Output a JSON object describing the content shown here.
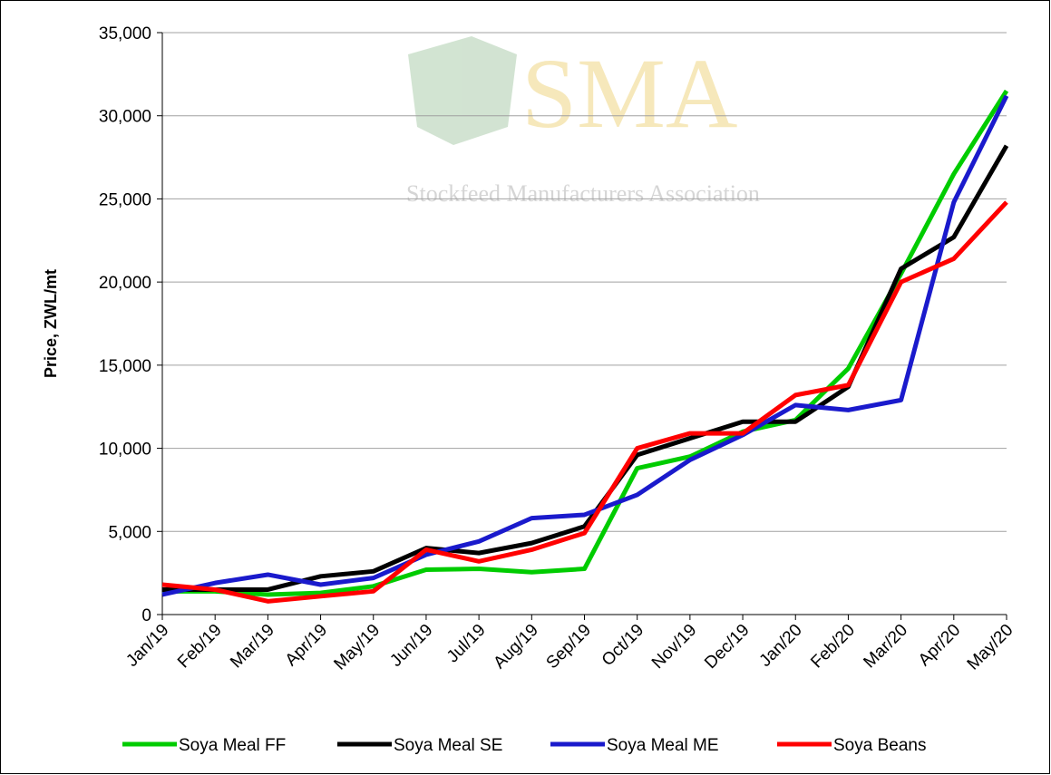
{
  "chart_data": {
    "type": "line",
    "y_label": "Price, ZWL/mt",
    "watermark_title": "SMA",
    "watermark_subtitle": "Stockfeed Manufacturers Association",
    "categories": [
      "Jan/19",
      "Feb/19",
      "Mar/19",
      "Apr/19",
      "May/19",
      "Jun/19",
      "Jul/19",
      "Aug/19",
      "Sep/19",
      "Oct/19",
      "Nov/19",
      "Dec/19",
      "Jan/20",
      "Feb/20",
      "Mar/20",
      "Apr/20",
      "May/20"
    ],
    "series": [
      {
        "name": "Soya Meal FF",
        "color": "#00cc00",
        "values": [
          1400,
          1400,
          1200,
          1300,
          1700,
          2700,
          2750,
          2550,
          2750,
          8800,
          9500,
          11000,
          11700,
          14800,
          20500,
          26500,
          31500
        ]
      },
      {
        "name": "Soya Meal SE",
        "color": "#000000",
        "values": [
          1500,
          1500,
          1500,
          2300,
          2600,
          4000,
          3700,
          4300,
          5300,
          9600,
          10600,
          11600,
          11600,
          13700,
          20800,
          22700,
          28200
        ]
      },
      {
        "name": "Soya Meal ME",
        "color": "#1a1acc",
        "values": [
          1200,
          1900,
          2400,
          1800,
          2200,
          3600,
          4400,
          5800,
          6000,
          7200,
          9300,
          10800,
          12600,
          12300,
          12900,
          24800,
          31200
        ]
      },
      {
        "name": "Soya Beans",
        "color": "#ff0000",
        "values": [
          1800,
          1500,
          800,
          1100,
          1400,
          3900,
          3200,
          3900,
          4900,
          10000,
          10900,
          10900,
          13200,
          13800,
          20000,
          21400,
          24800
        ]
      }
    ],
    "ylim": [
      0,
      35000
    ],
    "yticks": [
      0,
      {
        "value": 5000,
        "label": "5,000"
      },
      {
        "value": 10000,
        "label": "10,000"
      },
      {
        "value": 15000,
        "label": "15,000"
      },
      {
        "value": 20000,
        "label": "20,000"
      },
      {
        "value": 25000,
        "label": "25,000"
      },
      {
        "value": 30000,
        "label": "30,000"
      },
      {
        "value": 35000,
        "label": "35,000"
      }
    ],
    "grid": true,
    "legend": "bottom"
  }
}
